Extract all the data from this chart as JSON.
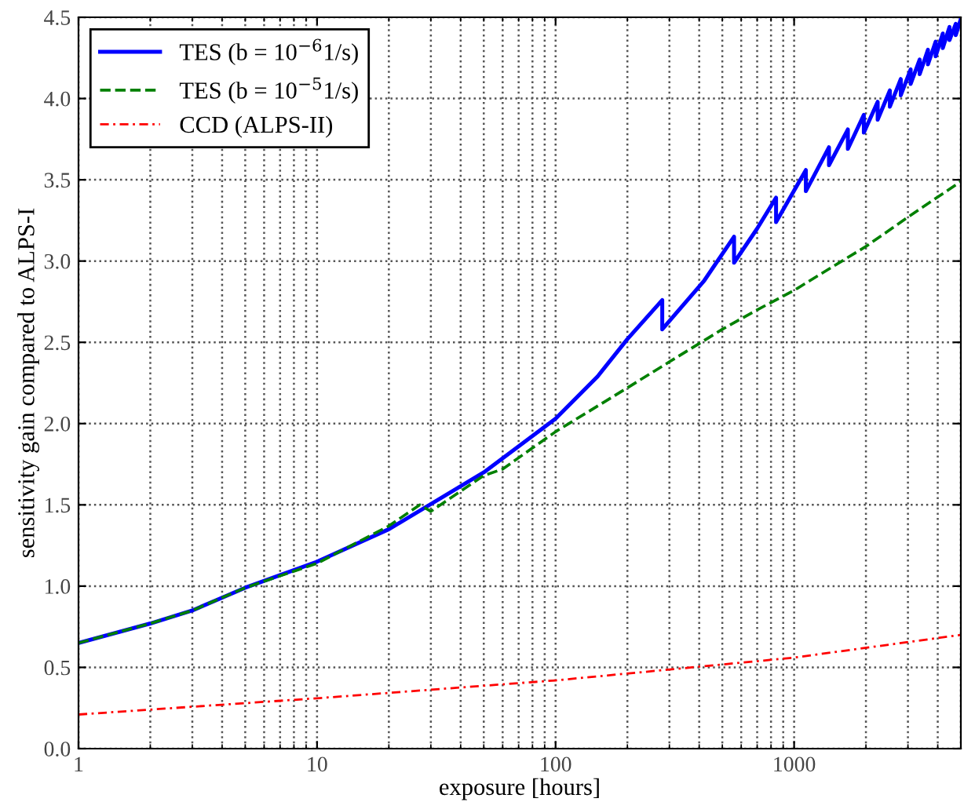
{
  "chart_data": {
    "type": "line",
    "xlabel": "exposure [hours]",
    "ylabel": "sensitivity gain compared to ALPS-I",
    "log": "x",
    "grid": true,
    "legend": "top left",
    "xlim": [
      1,
      5000
    ],
    "xticks": [
      1,
      10,
      100,
      1000
    ],
    "ylim": [
      0,
      4.5
    ],
    "yticks": [
      {
        "value": 0,
        "label": "0.0"
      },
      0.5,
      {
        "value": 1,
        "label": "1.0"
      },
      1.5,
      {
        "value": 2,
        "label": "2.0"
      },
      2.5,
      {
        "value": 3,
        "label": "3.0"
      },
      3.5,
      {
        "value": 4,
        "label": "4.0"
      },
      4.5
    ],
    "series": [
      {
        "name": "TES (b = 10$^{−6}$1/s)",
        "color": "#0000ff",
        "line_style": "solid",
        "x": [
          1,
          2,
          3,
          5,
          10,
          20,
          50,
          100,
          150,
          200,
          280,
          280,
          420,
          560,
          560,
          700,
          840,
          840,
          1120,
          1120,
          1400,
          1400,
          1680,
          1680,
          1960,
          1960,
          2240,
          2240,
          2520,
          2520,
          2800,
          2800,
          3080,
          3080,
          3360,
          3360,
          3640,
          3640,
          3920,
          3920,
          4200,
          4200,
          4480,
          4480,
          4760,
          4760,
          5000
        ],
        "values": [
          0.65,
          0.77,
          0.85,
          0.99,
          1.15,
          1.35,
          1.7,
          2.03,
          2.29,
          2.52,
          2.76,
          2.58,
          2.88,
          3.15,
          2.99,
          3.2,
          3.39,
          3.24,
          3.56,
          3.43,
          3.7,
          3.59,
          3.81,
          3.69,
          3.9,
          3.79,
          3.98,
          3.87,
          4.05,
          3.95,
          4.12,
          4.02,
          4.18,
          4.09,
          4.24,
          4.15,
          4.3,
          4.21,
          4.35,
          4.26,
          4.4,
          4.31,
          4.44,
          4.36,
          4.46,
          4.39,
          4.49
        ]
      },
      {
        "name": "TES (b = 10$^{−5}$1/s)",
        "color": "#008000",
        "line_style": "dashed",
        "x": [
          1,
          2,
          3,
          5,
          10,
          20,
          27,
          30,
          50,
          60,
          100,
          200,
          300,
          500,
          700,
          1000,
          2000,
          3000,
          5000
        ],
        "values": [
          0.65,
          0.77,
          0.85,
          0.99,
          1.14,
          1.37,
          1.5,
          1.46,
          1.68,
          1.72,
          1.95,
          2.22,
          2.38,
          2.58,
          2.7,
          2.82,
          3.09,
          3.27,
          3.49
        ]
      },
      {
        "name": "CCD (ALPS-II)",
        "color": "#ff0000",
        "line_style": "dotted",
        "x": [
          1,
          10,
          100,
          1000,
          5000
        ],
        "values": [
          0.21,
          0.31,
          0.42,
          0.56,
          0.7
        ]
      }
    ]
  }
}
